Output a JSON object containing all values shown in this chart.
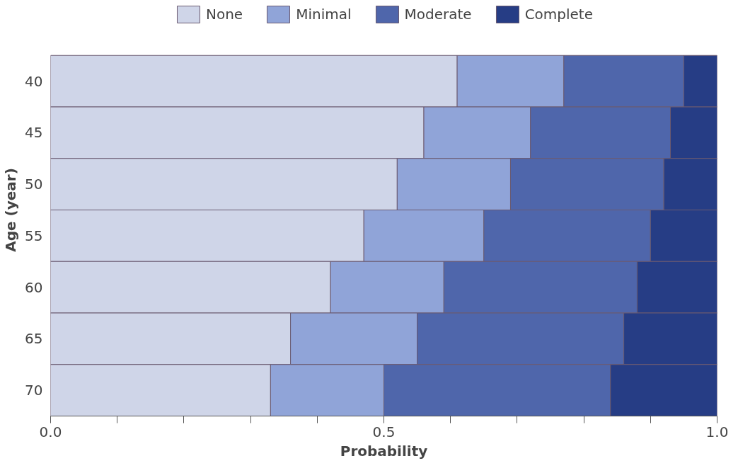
{
  "chart_data": {
    "type": "bar",
    "orientation": "horizontal",
    "stacked": true,
    "categories": [
      "40",
      "45",
      "50",
      "55",
      "60",
      "65",
      "70"
    ],
    "series": [
      {
        "name": "None",
        "color": "#cfd5e8",
        "values": [
          0.61,
          0.56,
          0.52,
          0.47,
          0.42,
          0.36,
          0.33
        ]
      },
      {
        "name": "Minimal",
        "color": "#90a4d8",
        "values": [
          0.16,
          0.16,
          0.17,
          0.18,
          0.17,
          0.19,
          0.17
        ]
      },
      {
        "name": "Moderate",
        "color": "#4f66ab",
        "values": [
          0.18,
          0.21,
          0.23,
          0.25,
          0.29,
          0.31,
          0.34
        ]
      },
      {
        "name": "Complete",
        "color": "#263d85",
        "values": [
          0.05,
          0.07,
          0.08,
          0.1,
          0.12,
          0.14,
          0.16
        ]
      }
    ],
    "xlabel": "Probability",
    "ylabel": "Age (year)",
    "xlim": [
      0,
      1
    ],
    "xticks": [
      {
        "value": 0,
        "label": "0.0"
      },
      {
        "value": 0.1,
        "label": null
      },
      {
        "value": 0.2,
        "label": null
      },
      {
        "value": 0.3,
        "label": null
      },
      {
        "value": 0.4,
        "label": null
      },
      {
        "value": 0.5,
        "label": "0.5"
      },
      {
        "value": 0.6,
        "label": null
      },
      {
        "value": 0.7,
        "label": null
      },
      {
        "value": 0.8,
        "label": null
      },
      {
        "value": 0.9,
        "label": null
      },
      {
        "value": 1.0,
        "label": "1.0"
      }
    ],
    "legend": "top"
  }
}
